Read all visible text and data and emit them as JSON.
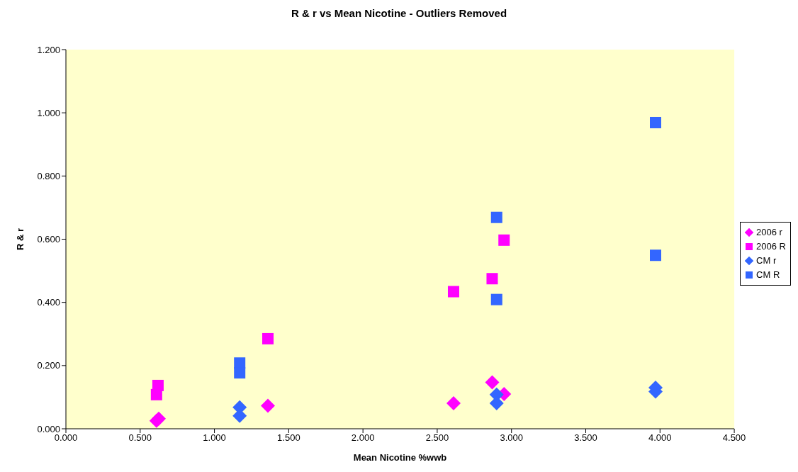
{
  "chart_data": {
    "type": "scatter",
    "title": "R & r vs Mean Nicotine - Outliers Removed",
    "xlabel": "Mean Nicotine %wwb",
    "ylabel": "R & r",
    "xlim": [
      0,
      4.5
    ],
    "xticks": [
      {
        "value": 0,
        "label": "0.000"
      },
      {
        "value": 0.5,
        "label": "0.500"
      },
      {
        "value": 1,
        "label": "1.000"
      },
      {
        "value": 1.5,
        "label": "1.500"
      },
      {
        "value": 2,
        "label": "2.000"
      },
      {
        "value": 2.5,
        "label": "2.500"
      },
      {
        "value": 3,
        "label": "3.000"
      },
      {
        "value": 3.5,
        "label": "3.500"
      },
      {
        "value": 4,
        "label": "4.000"
      },
      {
        "value": 4.5,
        "label": "4.500"
      }
    ],
    "ylim": [
      0,
      1.2
    ],
    "yticks": [
      {
        "value": 0,
        "label": "0.000"
      },
      {
        "value": 0.2,
        "label": "0.200"
      },
      {
        "value": 0.4,
        "label": "0.400"
      },
      {
        "value": 0.6,
        "label": "0.600"
      },
      {
        "value": 0.8,
        "label": "0.800"
      },
      {
        "value": 1,
        "label": "1.000"
      },
      {
        "value": 1.2,
        "label": "1.200"
      }
    ],
    "legend": "right",
    "series": [
      {
        "name": "2006 r",
        "color": "#ff00ff",
        "marker": "diamond",
        "x": [
          0.61,
          0.625,
          1.36,
          2.61,
          2.87,
          2.95
        ],
        "values": [
          0.025,
          0.032,
          0.073,
          0.081,
          0.147,
          0.11
        ]
      },
      {
        "name": "2006 R",
        "color": "#ff00ff",
        "marker": "square",
        "x": [
          0.61,
          0.62,
          1.36,
          2.61,
          2.87,
          2.95
        ],
        "values": [
          0.108,
          0.137,
          0.285,
          0.434,
          0.475,
          0.597
        ]
      },
      {
        "name": "CM r",
        "color": "#3366ff",
        "marker": "diamond",
        "x": [
          1.17,
          1.17,
          2.9,
          2.9,
          3.97,
          3.97
        ],
        "values": [
          0.068,
          0.041,
          0.108,
          0.081,
          0.118,
          0.13
        ]
      },
      {
        "name": "CM R",
        "color": "#3366ff",
        "marker": "square",
        "x": [
          1.17,
          1.17,
          2.9,
          2.9,
          3.97,
          3.97
        ],
        "values": [
          0.208,
          0.177,
          0.409,
          0.669,
          0.969,
          0.549
        ]
      }
    ]
  }
}
